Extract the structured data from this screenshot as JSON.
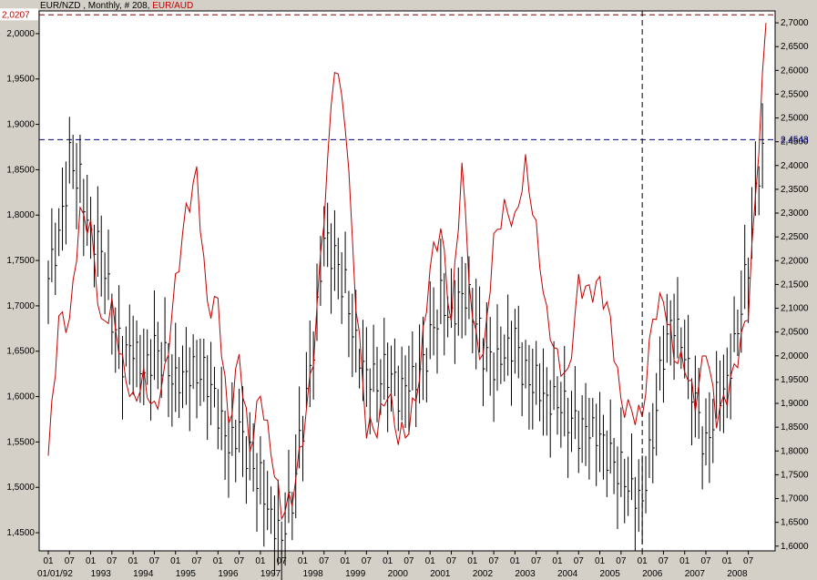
{
  "header": {
    "primary_label": "EUR/NZD , Monthly, # 208,",
    "secondary_label": "EUR/AUD"
  },
  "colors": {
    "background": "#d4d0c8",
    "plot_background": "#ffffff",
    "eurnzd_bars": "#000000",
    "euraud_line": "#c00000",
    "readout_left": "#c00000",
    "readout_right": "#000080",
    "guide": "#000080"
  },
  "readouts": {
    "left_value": "2,0207",
    "right_value": "2,4543"
  },
  "chart_data": {
    "type": "line",
    "x_range": [
      "1992-01",
      "2008-12"
    ],
    "left_axis": {
      "range": [
        1.43,
        2.025
      ],
      "ticks": [
        "2,0000",
        "1,9500",
        "1,9000",
        "1,8500",
        "1,8000",
        "1,7500",
        "1,7000",
        "1,6500",
        "1,6000",
        "1,5500",
        "1,5000",
        "1,4500"
      ]
    },
    "right_axis": {
      "range": [
        1.59,
        2.725
      ],
      "ticks": [
        "2,7000",
        "2,6500",
        "2,6000",
        "2,5500",
        "2,5000",
        "2,4500",
        "2,4000",
        "2,3500",
        "2,3000",
        "2,2500",
        "2,2000",
        "2,1500",
        "2,1000",
        "2,0500",
        "2,0000",
        "1,9500",
        "1,9000",
        "1,8500",
        "1,8000",
        "1,7500",
        "1,7000",
        "1,6500",
        "1,6000"
      ]
    },
    "x_axis": {
      "month_ticks": [
        "01",
        "07",
        "01",
        "07",
        "01",
        "07",
        "01",
        "07",
        "01",
        "07",
        "01",
        "07",
        "01",
        "07",
        "01",
        "07",
        "01",
        "07",
        "01",
        "07",
        "01",
        "07",
        "01",
        "07",
        "01",
        "07",
        "01",
        "07",
        "01",
        "07",
        "01",
        "07",
        "01",
        "07"
      ],
      "month_tick_dates": [
        "1992-01",
        "1992-07",
        "1993-01",
        "1993-07",
        "1994-01",
        "1994-07",
        "1995-01",
        "1995-07",
        "1996-01",
        "1996-07",
        "1997-01",
        "1997-07",
        "1998-01",
        "1998-07",
        "1999-01",
        "1999-07",
        "2000-01",
        "2000-07",
        "2001-01",
        "2001-07",
        "2002-01",
        "2002-07",
        "2003-01",
        "2003-07",
        "2004-01",
        "2004-07",
        "2005-01",
        "2005-07",
        "2006-01",
        "2006-07",
        "2007-01",
        "2007-07",
        "2008-01",
        "2008-07"
      ],
      "year_labels": [
        {
          "date": "1992-01",
          "label": "01/01/92"
        },
        {
          "date": "1993-01",
          "label": "1993"
        },
        {
          "date": "1994-01",
          "label": "1994"
        },
        {
          "date": "1995-01",
          "label": "1995"
        },
        {
          "date": "1996-01",
          "label": "1996"
        },
        {
          "date": "1997-01",
          "label": "1997"
        },
        {
          "date": "1998-01",
          "label": "1998"
        },
        {
          "date": "1999-01",
          "label": "1999"
        },
        {
          "date": "2000-01",
          "label": "2000"
        },
        {
          "date": "2001-01",
          "label": "2001"
        },
        {
          "date": "2002-01",
          "label": "2002"
        },
        {
          "date": "2003-01",
          "label": "2003"
        },
        {
          "date": "2004-01",
          "label": "2004"
        },
        {
          "date": "2005-01",
          "label": "2005"
        },
        {
          "date": "2006-01",
          "label": "2006"
        },
        {
          "date": "2007-01",
          "label": "2007"
        },
        {
          "date": "2008-01",
          "label": "2008"
        }
      ]
    },
    "cursor_date": "2006-01",
    "guides": {
      "left_value": 2.0207,
      "right_value": 2.4543
    },
    "series": [
      {
        "name": "EUR/NZD",
        "style": "bars",
        "axis": "left",
        "points": [
          [
            "1992-01",
            1.73
          ],
          [
            "1992-04",
            1.77
          ],
          [
            "1992-07",
            1.86
          ],
          [
            "1992-10",
            1.84
          ],
          [
            "1993-01",
            1.78
          ],
          [
            "1993-04",
            1.77
          ],
          [
            "1993-07",
            1.69
          ],
          [
            "1993-10",
            1.64
          ],
          [
            "1994-01",
            1.65
          ],
          [
            "1994-04",
            1.62
          ],
          [
            "1994-07",
            1.65
          ],
          [
            "1994-10",
            1.64
          ],
          [
            "1995-01",
            1.62
          ],
          [
            "1995-04",
            1.63
          ],
          [
            "1995-07",
            1.63
          ],
          [
            "1995-10",
            1.62
          ],
          [
            "1996-01",
            1.58
          ],
          [
            "1996-04",
            1.54
          ],
          [
            "1996-07",
            1.56
          ],
          [
            "1996-10",
            1.53
          ],
          [
            "1997-01",
            1.51
          ],
          [
            "1997-04",
            1.47
          ],
          [
            "1997-07",
            1.45
          ],
          [
            "1997-10",
            1.49
          ],
          [
            "1998-01",
            1.57
          ],
          [
            "1998-04",
            1.65
          ],
          [
            "1998-07",
            1.77
          ],
          [
            "1998-10",
            1.75
          ],
          [
            "1999-01",
            1.72
          ],
          [
            "1999-04",
            1.66
          ],
          [
            "1999-07",
            1.63
          ],
          [
            "1999-10",
            1.62
          ],
          [
            "2000-01",
            1.63
          ],
          [
            "2000-04",
            1.6
          ],
          [
            "2000-07",
            1.61
          ],
          [
            "2000-10",
            1.62
          ],
          [
            "2001-01",
            1.66
          ],
          [
            "2001-04",
            1.71
          ],
          [
            "2001-07",
            1.69
          ],
          [
            "2001-10",
            1.72
          ],
          [
            "2002-01",
            1.7
          ],
          [
            "2002-04",
            1.65
          ],
          [
            "2002-07",
            1.63
          ],
          [
            "2002-10",
            1.64
          ],
          [
            "2003-01",
            1.66
          ],
          [
            "2003-04",
            1.62
          ],
          [
            "2003-07",
            1.62
          ],
          [
            "2003-10",
            1.6
          ],
          [
            "2004-01",
            1.6
          ],
          [
            "2004-04",
            1.58
          ],
          [
            "2004-07",
            1.56
          ],
          [
            "2004-10",
            1.56
          ],
          [
            "2005-01",
            1.55
          ],
          [
            "2005-04",
            1.53
          ],
          [
            "2005-07",
            1.52
          ],
          [
            "2005-10",
            1.5
          ],
          [
            "2006-01",
            1.49
          ],
          [
            "2006-04",
            1.56
          ],
          [
            "2006-07",
            1.65
          ],
          [
            "2006-10",
            1.68
          ],
          [
            "2007-01",
            1.64
          ],
          [
            "2007-04",
            1.59
          ],
          [
            "2007-07",
            1.54
          ],
          [
            "2007-10",
            1.6
          ],
          [
            "2008-01",
            1.62
          ],
          [
            "2008-04",
            1.68
          ],
          [
            "2008-07",
            1.75
          ],
          [
            "2008-10",
            1.85
          ],
          [
            "2008-12",
            1.88
          ]
        ]
      },
      {
        "name": "EUR/AUD",
        "style": "line",
        "axis": "right",
        "points": [
          [
            "1992-01",
            1.79
          ],
          [
            "1992-04",
            2.08
          ],
          [
            "1992-07",
            2.07
          ],
          [
            "1992-10",
            2.3
          ],
          [
            "1993-01",
            2.27
          ],
          [
            "1993-04",
            2.06
          ],
          [
            "1993-07",
            2.1
          ],
          [
            "1993-10",
            1.98
          ],
          [
            "1994-01",
            1.9
          ],
          [
            "1994-04",
            1.95
          ],
          [
            "1994-07",
            1.88
          ],
          [
            "1994-10",
            1.96
          ],
          [
            "1995-01",
            2.15
          ],
          [
            "1995-04",
            2.3
          ],
          [
            "1995-07",
            2.38
          ],
          [
            "1995-10",
            2.1
          ],
          [
            "1996-01",
            2.11
          ],
          [
            "1996-04",
            1.85
          ],
          [
            "1996-07",
            2.0
          ],
          [
            "1996-10",
            1.8
          ],
          [
            "1997-01",
            1.92
          ],
          [
            "1997-04",
            1.8
          ],
          [
            "1997-07",
            1.67
          ],
          [
            "1997-10",
            1.7
          ],
          [
            "1998-01",
            1.83
          ],
          [
            "1998-04",
            2.0
          ],
          [
            "1998-07",
            2.3
          ],
          [
            "1998-10",
            2.62
          ],
          [
            "1999-01",
            2.5
          ],
          [
            "1999-04",
            2.12
          ],
          [
            "1999-07",
            1.85
          ],
          [
            "1999-10",
            1.85
          ],
          [
            "2000-01",
            1.93
          ],
          [
            "2000-04",
            1.83
          ],
          [
            "2000-07",
            1.85
          ],
          [
            "2000-10",
            1.96
          ],
          [
            "2001-01",
            2.19
          ],
          [
            "2001-04",
            2.27
          ],
          [
            "2001-07",
            2.07
          ],
          [
            "2001-10",
            2.4
          ],
          [
            "2002-01",
            2.07
          ],
          [
            "2002-04",
            1.99
          ],
          [
            "2002-07",
            2.24
          ],
          [
            "2002-10",
            2.31
          ],
          [
            "2003-01",
            2.28
          ],
          [
            "2003-04",
            2.4
          ],
          [
            "2003-07",
            2.26
          ],
          [
            "2003-10",
            2.08
          ],
          [
            "2004-01",
            1.99
          ],
          [
            "2004-04",
            1.95
          ],
          [
            "2004-07",
            2.15
          ],
          [
            "2004-10",
            2.13
          ],
          [
            "2005-01",
            2.15
          ],
          [
            "2005-04",
            2.07
          ],
          [
            "2005-07",
            1.9
          ],
          [
            "2005-10",
            1.88
          ],
          [
            "2006-01",
            1.87
          ],
          [
            "2006-04",
            2.08
          ],
          [
            "2006-07",
            2.12
          ],
          [
            "2006-10",
            2.0
          ],
          [
            "2007-01",
            1.98
          ],
          [
            "2007-04",
            1.9
          ],
          [
            "2007-07",
            2.02
          ],
          [
            "2007-10",
            1.87
          ],
          [
            "2008-01",
            1.92
          ],
          [
            "2008-04",
            2.0
          ],
          [
            "2008-07",
            2.1
          ],
          [
            "2008-10",
            2.45
          ],
          [
            "2008-12",
            2.7
          ]
        ]
      }
    ]
  }
}
